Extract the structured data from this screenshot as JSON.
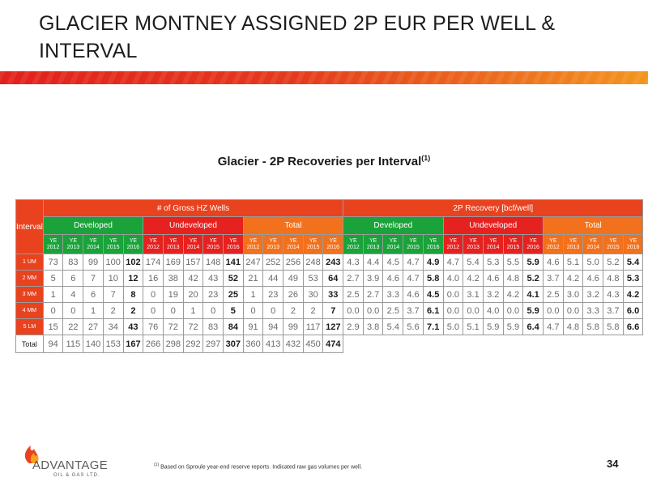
{
  "slide": {
    "title": "GLACIER MONTNEY ASSIGNED 2P EUR PER WELL & INTERVAL",
    "page_number": "34",
    "footnote_marker": "(1)",
    "footnote_text": "Based on Sproule year-end reserve reports. Indicated raw gas volumes per well."
  },
  "logo": {
    "word": "ADVANTAGE",
    "sub": "OIL & GAS LTD."
  },
  "table": {
    "title": "Glacier - 2P Recoveries per Interval",
    "title_sup": "(1)",
    "interval_header": "Interval",
    "groups": [
      "# of Gross HZ Wells",
      "2P Recovery [bcf/well]"
    ],
    "subgroups": [
      "Developed",
      "Undeveloped",
      "Total",
      "Developed",
      "Undeveloped",
      "Total"
    ],
    "years": [
      {
        "ye": "YE",
        "yr": "2012"
      },
      {
        "ye": "YE",
        "yr": "2013"
      },
      {
        "ye": "YE",
        "yr": "2014"
      },
      {
        "ye": "YE",
        "yr": "2015"
      },
      {
        "ye": "YE",
        "yr": "2016"
      }
    ],
    "rows": [
      {
        "label": "1 UM",
        "values": [
          "73",
          "83",
          "99",
          "100",
          "102",
          "174",
          "169",
          "157",
          "148",
          "141",
          "247",
          "252",
          "256",
          "248",
          "243",
          "4.3",
          "4.4",
          "4.5",
          "4.7",
          "4.9",
          "4.7",
          "5.4",
          "5.3",
          "5.5",
          "5.9",
          "4.6",
          "5.1",
          "5.0",
          "5.2",
          "5.4"
        ]
      },
      {
        "label": "2 MM",
        "values": [
          "5",
          "6",
          "7",
          "10",
          "12",
          "16",
          "38",
          "42",
          "43",
          "52",
          "21",
          "44",
          "49",
          "53",
          "64",
          "2.7",
          "3.9",
          "4.6",
          "4.7",
          "5.8",
          "4.0",
          "4.2",
          "4.6",
          "4.8",
          "5.2",
          "3.7",
          "4.2",
          "4.6",
          "4.8",
          "5.3"
        ]
      },
      {
        "label": "3 MM",
        "values": [
          "1",
          "4",
          "6",
          "7",
          "8",
          "0",
          "19",
          "20",
          "23",
          "25",
          "1",
          "23",
          "26",
          "30",
          "33",
          "2.5",
          "2.7",
          "3.3",
          "4.6",
          "4.5",
          "0.0",
          "3.1",
          "3.2",
          "4.2",
          "4.1",
          "2.5",
          "3.0",
          "3.2",
          "4.3",
          "4.2"
        ]
      },
      {
        "label": "4 MM",
        "values": [
          "0",
          "0",
          "1",
          "2",
          "2",
          "0",
          "0",
          "1",
          "0",
          "5",
          "0",
          "0",
          "2",
          "2",
          "7",
          "0.0",
          "0.0",
          "2.5",
          "3.7",
          "6.1",
          "0.0",
          "0.0",
          "4.0",
          "0.0",
          "5.9",
          "0.0",
          "0.0",
          "3.3",
          "3.7",
          "6.0"
        ]
      },
      {
        "label": "5 LM",
        "values": [
          "15",
          "22",
          "27",
          "34",
          "43",
          "76",
          "72",
          "72",
          "83",
          "84",
          "91",
          "94",
          "99",
          "117",
          "127",
          "2.9",
          "3.8",
          "5.4",
          "5.6",
          "7.1",
          "5.0",
          "5.1",
          "5.9",
          "5.9",
          "6.4",
          "4.7",
          "4.8",
          "5.8",
          "5.8",
          "6.6"
        ]
      }
    ],
    "total_row": {
      "label": "Total",
      "values": [
        "94",
        "115",
        "140",
        "153",
        "167",
        "266",
        "298",
        "292",
        "297",
        "307",
        "360",
        "413",
        "432",
        "450",
        "474"
      ]
    }
  },
  "colors": {
    "header_orange_red": "#e8421f",
    "developed_green": "#1aa33a",
    "undeveloped_red": "#e5221f",
    "total_orange": "#f2711c"
  }
}
